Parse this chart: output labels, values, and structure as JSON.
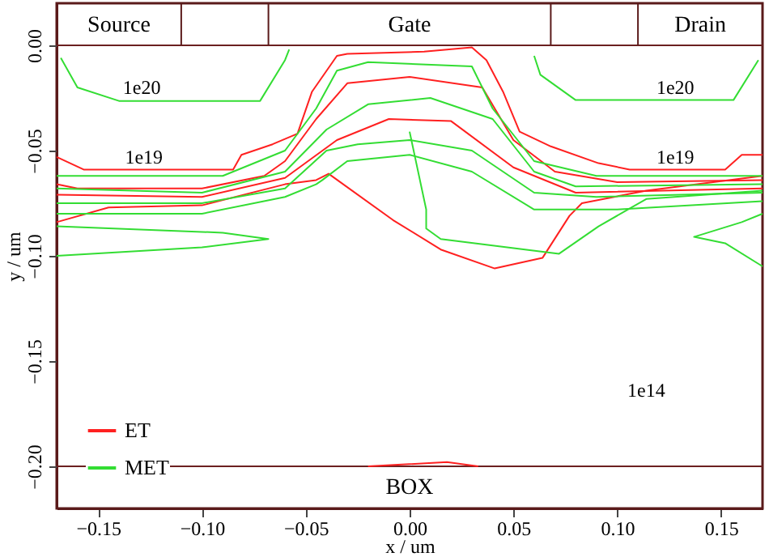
{
  "chart_data": {
    "type": "line",
    "xlabel": "x / um",
    "ylabel": "y / um",
    "xlim": [
      -0.17,
      0.17
    ],
    "ylim": [
      -0.22,
      0.02
    ],
    "xticks": [
      {
        "value": -0.15,
        "label": "−0.15"
      },
      {
        "value": -0.1,
        "label": "−0.10"
      },
      {
        "value": -0.05,
        "label": "−0.05"
      },
      {
        "value": 0,
        "label": "0.00"
      },
      {
        "value": 0.05,
        "label": "0.05"
      },
      {
        "value": 0.1,
        "label": "0.10"
      },
      {
        "value": 0.15,
        "label": "0.15"
      }
    ],
    "yticks": [
      {
        "value": 0,
        "label": "0.00"
      },
      {
        "value": -0.05,
        "label": "−0.05"
      },
      {
        "value": -0.1,
        "label": "−0.10"
      },
      {
        "value": -0.15,
        "label": "−0.15"
      },
      {
        "value": -0.2,
        "label": "−0.20"
      }
    ],
    "grid": false,
    "legend": "bottom left",
    "ref_lines": [
      {
        "axis": "y",
        "value": 0,
        "color": "#6b2020"
      },
      {
        "axis": "y",
        "value": -0.2,
        "color": "#6b2020"
      }
    ],
    "annotations": [
      "1e20",
      "1e20",
      "1e19",
      "1e19",
      "1e14",
      "Source",
      "Gate",
      "Drain",
      "BOX"
    ],
    "series": [
      {
        "name": "ET",
        "color": "#ff2020",
        "x": [
          -0.17,
          -0.157,
          -0.085,
          -0.081,
          -0.066,
          -0.054,
          -0.047,
          -0.035,
          -0.03,
          0.007,
          0.03,
          0.037,
          0.045,
          0.053,
          0.068,
          0.091,
          0.106,
          0.152,
          0.16,
          0.17
        ],
        "values": [
          -0.053,
          -0.059,
          -0.059,
          -0.052,
          -0.047,
          -0.042,
          -0.022,
          -0.005,
          -0.004,
          -0.003,
          -0.001,
          -0.007,
          -0.022,
          -0.041,
          -0.048,
          -0.056,
          -0.059,
          -0.059,
          -0.052,
          -0.052
        ]
      },
      {
        "color": "#ff2020",
        "x": [
          -0.17,
          -0.16,
          -0.1,
          -0.07,
          -0.06,
          -0.045,
          -0.03,
          0,
          0.035,
          0.05,
          0.07,
          0.1,
          0.17
        ],
        "values": [
          -0.066,
          -0.068,
          -0.068,
          -0.062,
          -0.055,
          -0.035,
          -0.018,
          -0.015,
          -0.02,
          -0.045,
          -0.06,
          -0.065,
          -0.064
        ]
      },
      {
        "color": "#ff2020",
        "x": [
          -0.17,
          -0.1,
          -0.06,
          -0.035,
          -0.01,
          0.02,
          0.05,
          0.08,
          0.17
        ],
        "values": [
          -0.071,
          -0.072,
          -0.063,
          -0.045,
          -0.035,
          -0.036,
          -0.058,
          -0.07,
          -0.068
        ]
      },
      {
        "color": "#ff2020",
        "x": [
          -0.17,
          -0.145,
          -0.1,
          -0.06,
          -0.045,
          -0.039,
          -0.008,
          0.015,
          0.041,
          0.064,
          0.077,
          0.083,
          0.114,
          0.17
        ],
        "values": [
          -0.084,
          -0.077,
          -0.076,
          -0.066,
          -0.064,
          -0.061,
          -0.083,
          -0.097,
          -0.106,
          -0.101,
          -0.081,
          -0.075,
          -0.069,
          -0.062
        ]
      },
      {
        "color": "#ff2020",
        "x": [
          -0.02,
          0.018,
          0.033
        ],
        "values": [
          -0.2,
          -0.198,
          -0.2
        ]
      },
      {
        "name": "MET",
        "color": "#33dd33",
        "x": [
          -0.168,
          -0.16,
          -0.14,
          -0.072,
          -0.06,
          -0.058
        ],
        "values": [
          -0.006,
          -0.02,
          -0.0264,
          -0.0264,
          -0.007,
          -0.002
        ]
      },
      {
        "color": "#33dd33",
        "x": [
          0.06,
          0.063,
          0.08,
          0.156,
          0.168
        ],
        "values": [
          -0.005,
          -0.014,
          -0.026,
          -0.026,
          -0.007
        ]
      },
      {
        "color": "#33dd33",
        "x": [
          -0.17,
          -0.09,
          -0.06,
          -0.045,
          -0.035,
          -0.02,
          0.03,
          0.04,
          0.06,
          0.09,
          0.17
        ],
        "values": [
          -0.062,
          -0.062,
          -0.05,
          -0.03,
          -0.012,
          -0.008,
          -0.01,
          -0.03,
          -0.055,
          -0.062,
          -0.062
        ]
      },
      {
        "color": "#33dd33",
        "x": [
          -0.17,
          -0.1,
          -0.06,
          -0.04,
          -0.02,
          0.01,
          0.04,
          0.06,
          0.08,
          0.17
        ],
        "values": [
          -0.068,
          -0.07,
          -0.06,
          -0.04,
          -0.028,
          -0.025,
          -0.035,
          -0.06,
          -0.067,
          -0.066
        ]
      },
      {
        "color": "#33dd33",
        "x": [
          -0.17,
          -0.1,
          -0.06,
          -0.04,
          -0.025,
          0,
          0.03,
          0.06,
          0.09,
          0.17
        ],
        "values": [
          -0.075,
          -0.075,
          -0.068,
          -0.05,
          -0.047,
          -0.045,
          -0.05,
          -0.07,
          -0.072,
          -0.07
        ]
      },
      {
        "color": "#33dd33",
        "x": [
          -0.17,
          -0.1,
          -0.06,
          -0.045,
          -0.042,
          -0.03,
          0,
          0.03,
          0.06,
          0.1,
          0.17
        ],
        "values": [
          -0.08,
          -0.08,
          -0.072,
          -0.066,
          -0.064,
          -0.055,
          -0.052,
          -0.06,
          -0.078,
          -0.078,
          -0.074
        ]
      },
      {
        "color": "#33dd33",
        "x": [
          -0.17,
          -0.09,
          -0.068,
          -0.1,
          -0.17
        ],
        "values": [
          -0.086,
          -0.089,
          -0.092,
          -0.096,
          -0.1
        ]
      },
      {
        "color": "#33dd33",
        "x": [
          0,
          0.008,
          0.008,
          0.015,
          0.072,
          0.091,
          0.114,
          0.17
        ],
        "values": [
          -0.041,
          -0.078,
          -0.087,
          -0.092,
          -0.099,
          -0.086,
          -0.073,
          -0.069
        ]
      },
      {
        "color": "#33dd33",
        "x": [
          0.17,
          0.152,
          0.137,
          0.16,
          0.17
        ],
        "values": [
          -0.105,
          -0.094,
          -0.091,
          -0.084,
          -0.08
        ]
      }
    ]
  }
}
